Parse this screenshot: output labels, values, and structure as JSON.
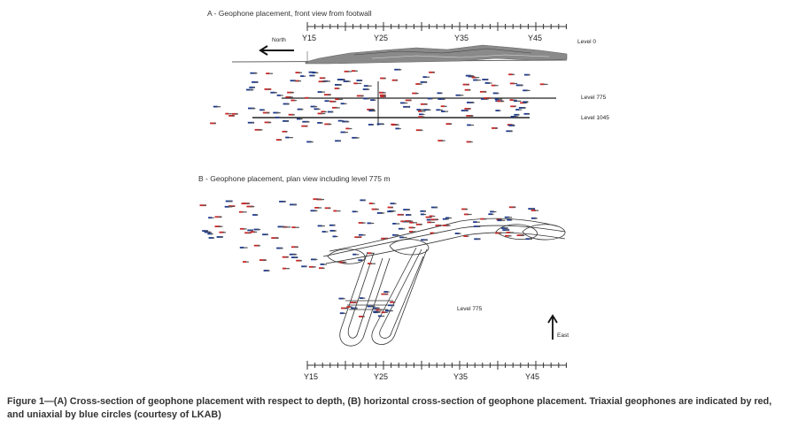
{
  "panel_a": {
    "title": "A - Geophone placement, front view from footwall",
    "north_label": "North",
    "ruler_labels": [
      "Y15",
      "Y25",
      "Y35",
      "Y45"
    ],
    "level_labels": [
      "Level 0",
      "Level 775",
      "Level 1045"
    ]
  },
  "panel_b": {
    "title": "B - Geophone placement, plan view including level 775 m",
    "level_label": "Level 775",
    "east_label": "East",
    "ruler_labels": [
      "Y15",
      "Y25",
      "Y35",
      "Y45"
    ]
  },
  "colors": {
    "triaxial": "#c62828",
    "uniaxial": "#1e3a8a",
    "surface": "#8a8a8a",
    "line": "#333333"
  },
  "caption": "Figure 1—(A) Cross-section of geophone placement with respect to depth, (B) horizontal cross-section of geophone placement. Triaxial geophones are indicated by red, and uniaxial by blue circles (courtesy of LKAB)"
}
